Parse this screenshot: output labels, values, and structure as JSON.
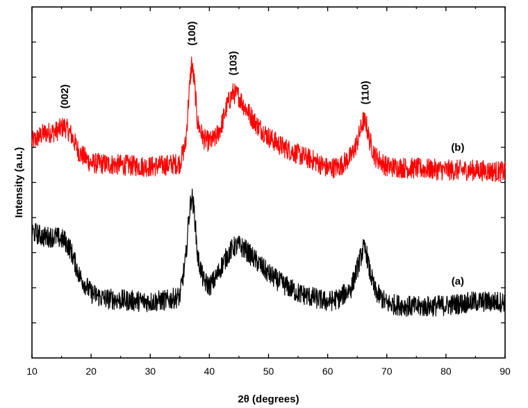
{
  "chart_data": {
    "type": "line",
    "xlabel": "2θ (degrees)",
    "ylabel": "Intensity (a.u.)",
    "xlim": [
      10,
      90
    ],
    "x_ticks": [
      10,
      20,
      30,
      40,
      50,
      60,
      70,
      80,
      90
    ],
    "y_tick_labels_shown": false,
    "grid": false,
    "series": [
      {
        "name": "(b)",
        "color": "#ff0000",
        "x": [
          10,
          12,
          14,
          15.5,
          16.5,
          18,
          20,
          25,
          30,
          33,
          35,
          36,
          36.5,
          37,
          37.5,
          38,
          39,
          40,
          41,
          42,
          43,
          44,
          45,
          46,
          48,
          50,
          52,
          55,
          58,
          60,
          62,
          64,
          65,
          66,
          66.5,
          67,
          68,
          70,
          75,
          80,
          85,
          90
        ],
        "values": [
          0.615,
          0.64,
          0.645,
          0.66,
          0.64,
          0.585,
          0.555,
          0.55,
          0.545,
          0.55,
          0.555,
          0.61,
          0.74,
          0.84,
          0.78,
          0.67,
          0.625,
          0.615,
          0.625,
          0.66,
          0.72,
          0.755,
          0.745,
          0.715,
          0.665,
          0.63,
          0.605,
          0.58,
          0.56,
          0.54,
          0.545,
          0.575,
          0.615,
          0.675,
          0.67,
          0.625,
          0.575,
          0.545,
          0.54,
          0.535,
          0.535,
          0.53
        ]
      },
      {
        "name": "(a)",
        "color": "#000000",
        "x": [
          10,
          12,
          14,
          15.5,
          16.5,
          18,
          20,
          22,
          25,
          30,
          33,
          35,
          36,
          36.5,
          37,
          37.5,
          38,
          39,
          40,
          41,
          42,
          43,
          44,
          45,
          46,
          48,
          50,
          52,
          55,
          58,
          60,
          62,
          64,
          65,
          66,
          66.5,
          67,
          68,
          70,
          75,
          80,
          85,
          90
        ],
        "values": [
          0.36,
          0.345,
          0.345,
          0.335,
          0.31,
          0.235,
          0.185,
          0.17,
          0.165,
          0.16,
          0.165,
          0.175,
          0.28,
          0.395,
          0.465,
          0.41,
          0.29,
          0.22,
          0.205,
          0.225,
          0.26,
          0.29,
          0.315,
          0.32,
          0.31,
          0.275,
          0.24,
          0.215,
          0.185,
          0.17,
          0.16,
          0.17,
          0.2,
          0.255,
          0.31,
          0.305,
          0.255,
          0.19,
          0.155,
          0.145,
          0.15,
          0.16,
          0.16
        ]
      }
    ],
    "annotations": [
      {
        "text": "(002)",
        "x": 15.5,
        "series": "(b)"
      },
      {
        "text": "(100)",
        "x": 37,
        "series": "(b)"
      },
      {
        "text": "(103)",
        "x": 44,
        "series": "(b)"
      },
      {
        "text": "(110)",
        "x": 66.3,
        "series": "(b)"
      },
      {
        "text": "(b)",
        "x": 82,
        "series": "(b)"
      },
      {
        "text": "(a)",
        "x": 82,
        "series": "(a)"
      }
    ]
  }
}
